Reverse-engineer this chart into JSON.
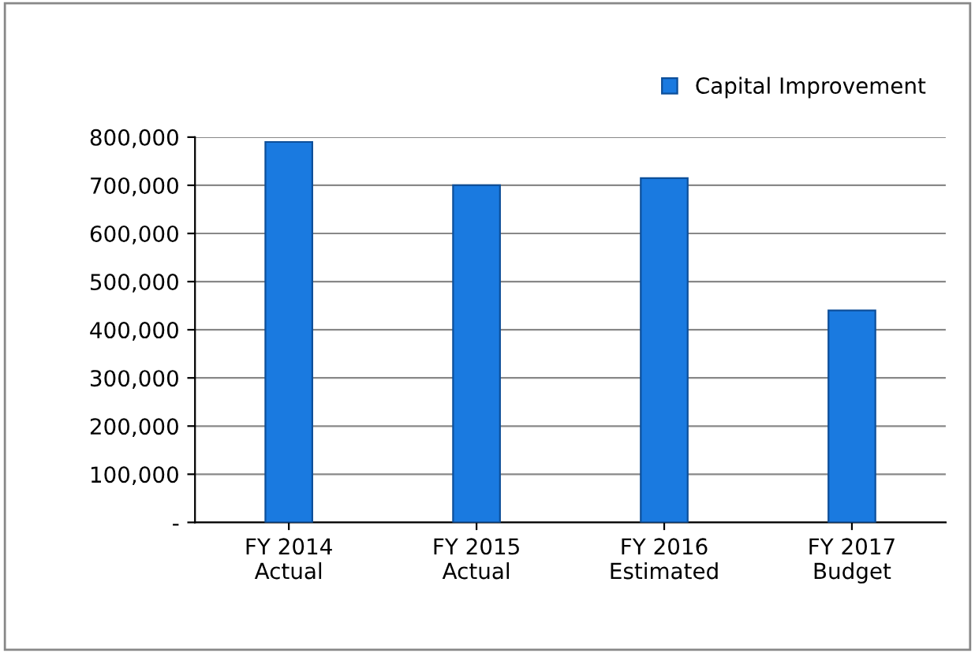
{
  "chart_data": {
    "type": "bar",
    "categories": [
      "FY 2014\nActual",
      "FY 2015\nActual",
      "FY 2016\nEstimated",
      "FY 2017\nBudget"
    ],
    "series": [
      {
        "name": "Capital Improvement",
        "color": "#1a7ae0",
        "values": [
          790000,
          700000,
          715000,
          440000
        ]
      }
    ],
    "ylim": [
      0,
      800000
    ],
    "yticks": [
      {
        "value": 0,
        "label": "-"
      },
      {
        "value": 100000,
        "label": "100,000"
      },
      {
        "value": 200000,
        "label": "200,000"
      },
      {
        "value": 300000,
        "label": "300,000"
      },
      {
        "value": 400000,
        "label": "400,000"
      },
      {
        "value": 500000,
        "label": "500,000"
      },
      {
        "value": 600000,
        "label": "600,000"
      },
      {
        "value": 700000,
        "label": "700,000"
      },
      {
        "value": 800000,
        "label": "800,000"
      }
    ],
    "grid": "y",
    "legend": "top right"
  }
}
